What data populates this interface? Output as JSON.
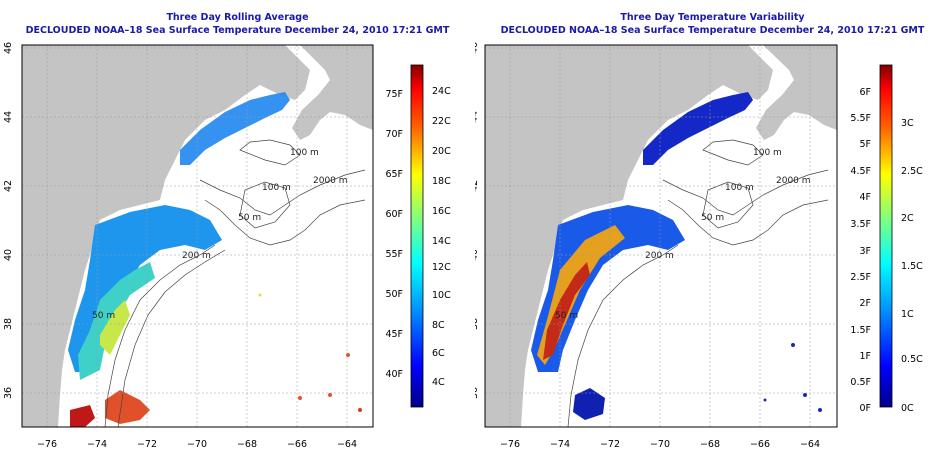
{
  "left_map": {
    "title": "Three Day Rolling Average",
    "subtitle": "DECLOUDED NOAA–18 Sea Surface Temperature December 24, 2010 17:21 GMT",
    "colorbar_f": [
      "75F",
      "70F",
      "65F",
      "60F",
      "55F",
      "50F",
      "45F",
      "40F"
    ],
    "colorbar_c": [
      "24C",
      "22C",
      "20C",
      "18C",
      "16C",
      "14C",
      "12C",
      "10C",
      "8C",
      "6C",
      "4C"
    ]
  },
  "right_map": {
    "title": "Three Day Temperature Variability",
    "subtitle": "DECLOUDED NOAA–18 Sea Surface Temperature December 24, 2010 17:21 GMT",
    "colorbar_f": [
      "6F",
      "5.5F",
      "5F",
      "4.5F",
      "4F",
      "3.5F",
      "3F",
      "2.5F",
      "2F",
      "1.5F",
      "1F",
      "0.5F",
      "0F"
    ],
    "colorbar_c": [
      "3C",
      "2.5C",
      "2C",
      "1.5C",
      "1C",
      "0.5C",
      "0C"
    ]
  },
  "longitude_labels": [
    "−76",
    "−74",
    "−72",
    "−70",
    "−68",
    "−66",
    "−64"
  ],
  "latitude_labels": [
    "46",
    "44",
    "42",
    "40",
    "38",
    "36"
  ],
  "contour_labels": [
    "100 m",
    "100 m",
    "2000 m",
    "50 m",
    "200 m",
    "50 m"
  ],
  "colors": {
    "title": "#1a1aa8",
    "land": "#c4c4c4",
    "ocean": "#ffffff"
  }
}
